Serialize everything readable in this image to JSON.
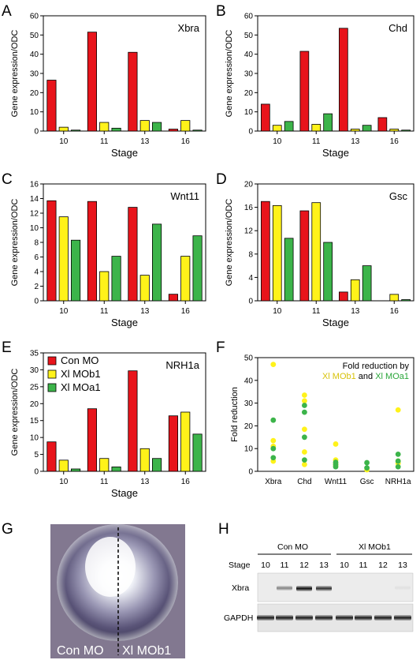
{
  "colors": {
    "con_mo": "#e8141b",
    "xl_mob1": "#fff21a",
    "xl_moa1": "#3cb44a",
    "fold_title_mob1": "#d8c20a",
    "fold_title_moa1": "#2aa63a"
  },
  "chart_data": [
    {
      "id": "A",
      "type": "bar",
      "title": "Xbra",
      "xlabel": "Stage",
      "ylabel": "Gene expression/ODC",
      "categories": [
        "10",
        "11",
        "13",
        "16"
      ],
      "ylim": [
        0,
        60
      ],
      "yticks": [
        0,
        10,
        20,
        30,
        40,
        50,
        60
      ],
      "series": [
        {
          "name": "Con MO",
          "values": [
            26.5,
            51.5,
            41,
            1
          ]
        },
        {
          "name": "Xl MOb1",
          "values": [
            2,
            4.5,
            5.5,
            5.5
          ]
        },
        {
          "name": "Xl MOa1",
          "values": [
            0.5,
            1.5,
            4.5,
            0.5
          ]
        }
      ]
    },
    {
      "id": "B",
      "type": "bar",
      "title": "Chd",
      "xlabel": "Stage",
      "ylabel": "Gene expression/ODC",
      "categories": [
        "10",
        "11",
        "13",
        "16"
      ],
      "ylim": [
        0,
        60
      ],
      "yticks": [
        0,
        10,
        20,
        30,
        40,
        50,
        60
      ],
      "series": [
        {
          "name": "Con MO",
          "values": [
            14,
            41.5,
            53.5,
            7
          ]
        },
        {
          "name": "Xl MOb1",
          "values": [
            3,
            3.5,
            1,
            1
          ]
        },
        {
          "name": "Xl MOa1",
          "values": [
            5,
            9,
            3,
            0.5
          ]
        }
      ]
    },
    {
      "id": "C",
      "type": "bar",
      "title": "Wnt11",
      "xlabel": "Stage",
      "ylabel": "Gene expression/ODC",
      "categories": [
        "10",
        "11",
        "13",
        "16"
      ],
      "ylim": [
        0,
        16
      ],
      "yticks": [
        0,
        2,
        4,
        6,
        8,
        10,
        12,
        14,
        16
      ],
      "series": [
        {
          "name": "Con MO",
          "values": [
            13.7,
            13.6,
            12.8,
            0.9
          ]
        },
        {
          "name": "Xl MOb1",
          "values": [
            11.5,
            4,
            3.5,
            6.1
          ]
        },
        {
          "name": "Xl MOa1",
          "values": [
            8.3,
            6.1,
            10.5,
            8.9
          ]
        }
      ]
    },
    {
      "id": "D",
      "type": "bar",
      "title": "Gsc",
      "xlabel": "Stage",
      "ylabel": "Gene expression/ODC",
      "categories": [
        "10",
        "11",
        "13",
        "16"
      ],
      "ylim": [
        0,
        20
      ],
      "yticks": [
        0,
        4,
        8,
        12,
        16,
        20
      ],
      "series": [
        {
          "name": "Con MO",
          "values": [
            17,
            15.4,
            1.5,
            0
          ]
        },
        {
          "name": "Xl MOb1",
          "values": [
            16.3,
            16.8,
            3.6,
            1.1
          ]
        },
        {
          "name": "Xl MOa1",
          "values": [
            10.7,
            10,
            6,
            0.2
          ]
        }
      ]
    },
    {
      "id": "E",
      "type": "bar",
      "title": "NRH1a",
      "xlabel": "Stage",
      "ylabel": "Gene expression/ODC",
      "categories": [
        "10",
        "11",
        "13",
        "16"
      ],
      "ylim": [
        0,
        35
      ],
      "yticks": [
        0,
        5,
        10,
        15,
        20,
        25,
        30,
        35
      ],
      "legend": [
        "Con MO",
        "Xl MOb1",
        "Xl MOa1"
      ],
      "series": [
        {
          "name": "Con MO",
          "values": [
            8.7,
            18.5,
            29.7,
            16.4
          ]
        },
        {
          "name": "Xl MOb1",
          "values": [
            3.3,
            3.8,
            6.7,
            17.5
          ]
        },
        {
          "name": "Xl MOa1",
          "values": [
            0.7,
            1.3,
            3.8,
            11
          ]
        }
      ]
    },
    {
      "id": "F",
      "type": "scatter",
      "ylabel": "Fold reduction",
      "title_prefix": "Fold reduction by",
      "title_mob1": "Xl MOb1",
      "title_and": "and",
      "title_moa1": "Xl MOa1",
      "categories": [
        "Xbra",
        "Chd",
        "Wnt11",
        "Gsc",
        "NRH1a"
      ],
      "ylim": [
        0,
        50
      ],
      "yticks": [
        0,
        10,
        20,
        30,
        40,
        50
      ],
      "series": [
        {
          "name": "Xl MOb1",
          "points": [
            [
              0,
              47
            ],
            [
              0,
              13.5
            ],
            [
              0,
              11
            ],
            [
              0,
              4.5
            ],
            [
              1,
              33.5
            ],
            [
              1,
              31
            ],
            [
              1,
              18.5
            ],
            [
              1,
              8.5
            ],
            [
              1,
              3
            ],
            [
              2,
              12
            ],
            [
              2,
              5
            ],
            [
              2,
              3.5
            ],
            [
              2,
              2.5
            ],
            [
              3,
              0.7
            ],
            [
              4,
              27
            ],
            [
              4,
              4.5
            ],
            [
              4,
              3.5
            ]
          ]
        },
        {
          "name": "Xl MOa1",
          "points": [
            [
              0,
              22.5
            ],
            [
              0,
              10
            ],
            [
              0,
              6
            ],
            [
              1,
              29
            ],
            [
              1,
              26
            ],
            [
              1,
              15
            ],
            [
              1,
              5
            ],
            [
              2,
              4
            ],
            [
              2,
              3
            ],
            [
              2,
              2
            ],
            [
              3,
              3.8
            ],
            [
              3,
              1.5
            ],
            [
              4,
              7.5
            ],
            [
              4,
              4.5
            ],
            [
              4,
              2
            ]
          ]
        }
      ]
    }
  ],
  "panels": {
    "letters": [
      "A",
      "B",
      "C",
      "D",
      "E",
      "F",
      "G",
      "H"
    ]
  },
  "embryo": {
    "left_label": "Con MO",
    "right_label": "Xl MOb1"
  },
  "blot": {
    "group_left": "Con MO",
    "group_right": "Xl MOb1",
    "stage_label": "Stage",
    "stages_left": [
      "10",
      "11",
      "12",
      "13"
    ],
    "stages_right": [
      "10",
      "11",
      "12",
      "13"
    ],
    "row_labels": [
      "Xbra",
      "GAPDH"
    ],
    "xbra_band_intensity": [
      0,
      0.45,
      0.95,
      0.8,
      0,
      0,
      0,
      0.05
    ]
  }
}
